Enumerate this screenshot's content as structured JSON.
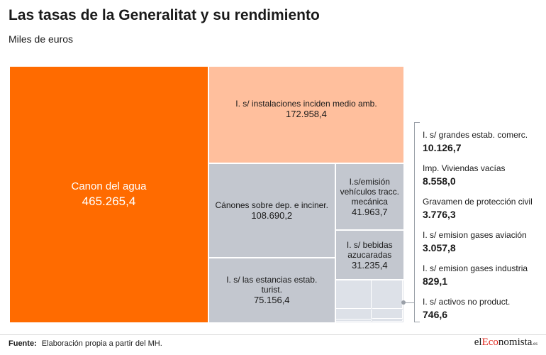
{
  "title": "Las tasas de la Generalitat y su rendimiento",
  "subtitle": "Miles de euros",
  "chart_data": {
    "type": "treemap",
    "title": "Las tasas de la Generalitat y su rendimiento",
    "subtitle": "Miles de euros",
    "unit": "Miles de euros",
    "items": [
      {
        "label": "Canon del agua",
        "value": 465265.4,
        "value_text": "465.265,4",
        "color": "#ff6b00",
        "text_color": "#ffffff"
      },
      {
        "label": "I. s/ instalaciones inciden medio amb.",
        "value": 172958.4,
        "value_text": "172.958,4",
        "color": "#ffbf9d",
        "text_color": "#1a1a1a"
      },
      {
        "label": "Cánones sobre dep. e inciner.",
        "value": 108690.2,
        "value_text": "108.690,2",
        "color": "#c3c7cf",
        "text_color": "#1a1a1a"
      },
      {
        "label": "I. s/ las estancias estab. turist.",
        "value": 75156.4,
        "value_text": "75.156,4",
        "color": "#c3c7cf",
        "text_color": "#1a1a1a"
      },
      {
        "label": "I.s/emisión vehículos tracc. mecánica",
        "value": 41963.7,
        "value_text": "41.963,7",
        "color": "#c3c7cf",
        "text_color": "#1a1a1a"
      },
      {
        "label": "I. s/ bebidas azucaradas",
        "value": 31235.4,
        "value_text": "31.235,4",
        "color": "#c3c7cf",
        "text_color": "#1a1a1a"
      }
    ],
    "small_items": [
      {
        "label": "I. s/ grandes  estab. comerc.",
        "value": 10126.7,
        "value_text": "10.126,7"
      },
      {
        "label": "Imp. Viviendas vacías",
        "value": 8558.0,
        "value_text": "8.558,0"
      },
      {
        "label": "Gravamen de protección civil",
        "value": 3776.3,
        "value_text": "3.776,3"
      },
      {
        "label": "I. s/ emision gases aviación",
        "value": 3057.8,
        "value_text": "3.057,8"
      },
      {
        "label": "I. s/ emision gases industria",
        "value": 829.1,
        "value_text": "829,1"
      },
      {
        "label": "I. s/ activos no product.",
        "value": 746.6,
        "value_text": "746,6"
      }
    ],
    "small_item_color": "#dde1e8"
  },
  "footer": {
    "label": "Fuente:",
    "text": "Elaboración propia a partir del MH."
  },
  "logo": {
    "prefix": "el",
    "highlight": "Eco",
    "suffix": "nomista",
    "tld": ".es"
  }
}
